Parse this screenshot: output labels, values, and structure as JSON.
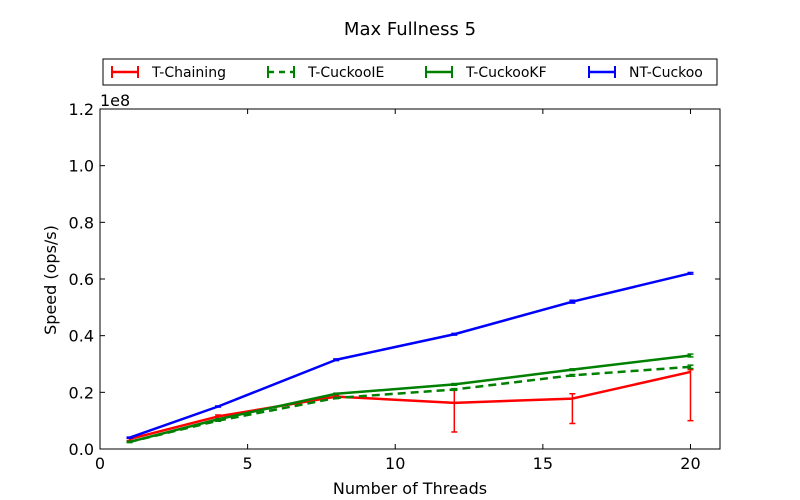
{
  "chart_data": {
    "type": "line",
    "title": "Max Fullness 5",
    "xlabel": "Number of Threads",
    "ylabel": "Speed (ops/s)",
    "y_scale_label": "1e8",
    "xlim": [
      0,
      21
    ],
    "ylim": [
      0.0,
      1.2
    ],
    "x_ticks": [
      0,
      5,
      10,
      15,
      20
    ],
    "y_ticks": [
      0.0,
      0.2,
      0.4,
      0.6,
      0.8,
      1.0,
      1.2
    ],
    "y_tick_labels": [
      "0.0",
      "0.2",
      "0.4",
      "0.6",
      "0.8",
      "1.0",
      "1.2"
    ],
    "grid": false,
    "legend_placement": "top, above plot",
    "series": [
      {
        "name": "T-Chaining",
        "color": "#ff0000",
        "dashed": false,
        "x": [
          1,
          4,
          8,
          12,
          16,
          20
        ],
        "y": [
          0.035,
          0.115,
          0.185,
          0.163,
          0.178,
          0.272
        ],
        "err_low": [
          0.03,
          0.105,
          0.18,
          0.06,
          0.09,
          0.1
        ],
        "err_high": [
          0.04,
          0.12,
          0.19,
          0.21,
          0.195,
          0.28
        ]
      },
      {
        "name": "T-CuckooIE",
        "color": "#008000",
        "dashed": true,
        "x": [
          1,
          4,
          8,
          12,
          16,
          20
        ],
        "y": [
          0.025,
          0.1,
          0.18,
          0.21,
          0.26,
          0.29
        ],
        "err_low": [
          0.023,
          0.098,
          0.178,
          0.207,
          0.257,
          0.284
        ],
        "err_high": [
          0.027,
          0.102,
          0.182,
          0.213,
          0.263,
          0.296
        ]
      },
      {
        "name": "T-CuckooKF",
        "color": "#008000",
        "dashed": false,
        "x": [
          1,
          4,
          8,
          12,
          16,
          20
        ],
        "y": [
          0.025,
          0.105,
          0.195,
          0.228,
          0.28,
          0.33
        ],
        "err_low": [
          0.023,
          0.103,
          0.193,
          0.225,
          0.277,
          0.325
        ],
        "err_high": [
          0.027,
          0.107,
          0.197,
          0.231,
          0.283,
          0.335
        ]
      },
      {
        "name": "NT-Cuckoo",
        "color": "#0000ff",
        "dashed": false,
        "x": [
          1,
          4,
          8,
          12,
          16,
          20
        ],
        "y": [
          0.04,
          0.15,
          0.315,
          0.405,
          0.52,
          0.62
        ],
        "err_low": [
          0.038,
          0.148,
          0.312,
          0.402,
          0.515,
          0.617
        ],
        "err_high": [
          0.042,
          0.152,
          0.318,
          0.408,
          0.525,
          0.623
        ]
      }
    ]
  }
}
